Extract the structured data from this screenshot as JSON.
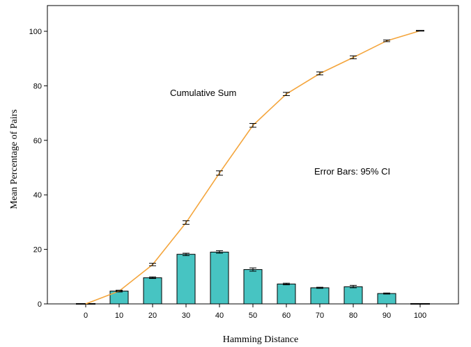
{
  "chart_data": {
    "type": "bar",
    "xlabel": "Hamming Distance",
    "ylabel": "Mean Percentage of Pairs",
    "ylim": [
      0,
      110
    ],
    "yticks": [
      0,
      20,
      40,
      60,
      80,
      100
    ],
    "categories": [
      "0",
      "10",
      "20",
      "30",
      "40",
      "50",
      "60",
      "70",
      "80",
      "90",
      "100"
    ],
    "series": [
      {
        "type": "bar",
        "color": "#47c4c2",
        "values": [
          0,
          4.7,
          9.6,
          18.2,
          19.0,
          12.6,
          7.3,
          5.9,
          6.3,
          3.8,
          0
        ],
        "ci": [
          [
            0,
            0
          ],
          [
            4.4,
            5.0
          ],
          [
            9.3,
            9.9
          ],
          [
            17.7,
            18.6
          ],
          [
            18.6,
            19.5
          ],
          [
            12.0,
            13.2
          ],
          [
            7.0,
            7.6
          ],
          [
            5.7,
            6.1
          ],
          [
            5.9,
            6.8
          ],
          [
            3.6,
            4.0
          ],
          [
            0,
            0
          ]
        ]
      },
      {
        "type": "line",
        "color": "#f4a53c",
        "values": [
          0,
          4.7,
          14.4,
          29.8,
          48.0,
          65.5,
          77.0,
          84.5,
          90.4,
          96.5,
          100.2
        ],
        "ci": [
          [
            0,
            0
          ],
          [
            4.4,
            5.0
          ],
          [
            14.0,
            14.9
          ],
          [
            29.2,
            30.5
          ],
          [
            47.2,
            48.8
          ],
          [
            64.8,
            66.2
          ],
          [
            76.4,
            77.6
          ],
          [
            84.0,
            85.1
          ],
          [
            89.9,
            91.0
          ],
          [
            96.2,
            96.8
          ],
          [
            100.2,
            100.2
          ]
        ]
      }
    ],
    "annotations": [
      "Cumulative Sum",
      "Error Bars: 95% CI"
    ],
    "grid": false,
    "legend": "none"
  }
}
